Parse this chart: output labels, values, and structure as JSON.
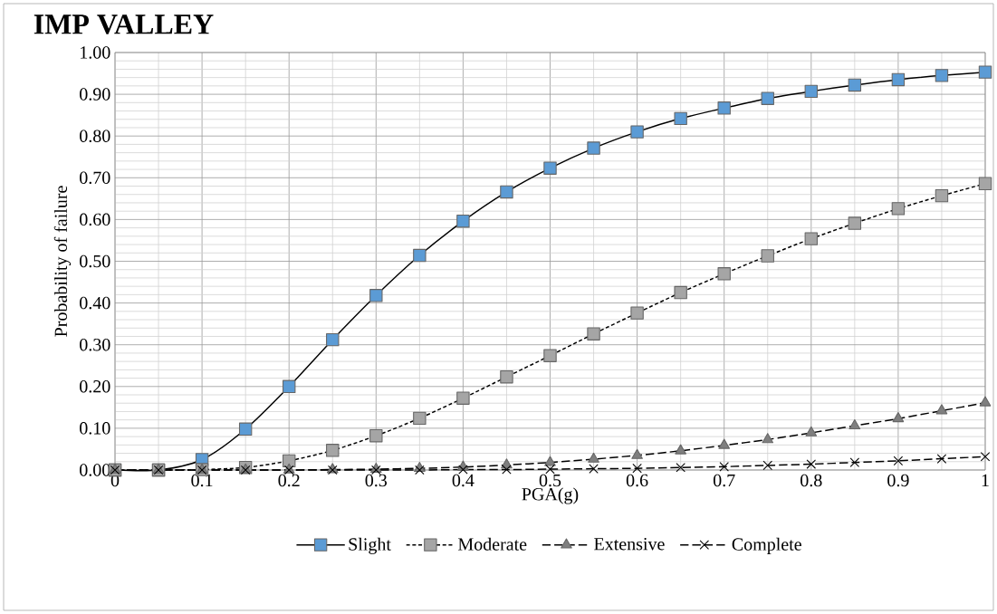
{
  "chart_data": {
    "type": "line",
    "title": "IMP VALLEY",
    "xlabel": "PGA(g)",
    "ylabel": "Probability of failure",
    "x": [
      0,
      0.05,
      0.1,
      0.15,
      0.2,
      0.25,
      0.3,
      0.35,
      0.4,
      0.45,
      0.5,
      0.55,
      0.6,
      0.65,
      0.7,
      0.75,
      0.8,
      0.85,
      0.9,
      0.95,
      1
    ],
    "series": [
      {
        "name": "Slight",
        "color": "#5b9bd5",
        "marker": "square",
        "line_style": "solid",
        "values": [
          0,
          0,
          0.025,
          0.098,
          0.2,
          0.312,
          0.418,
          0.514,
          0.596,
          0.666,
          0.723,
          0.771,
          0.81,
          0.842,
          0.867,
          0.89,
          0.907,
          0.922,
          0.935,
          0.945,
          0.953
        ]
      },
      {
        "name": "Moderate",
        "color": "#a5a5a5",
        "marker": "square",
        "line_style": "dotted",
        "values": [
          0,
          0,
          0.001,
          0.006,
          0.022,
          0.047,
          0.082,
          0.124,
          0.172,
          0.223,
          0.274,
          0.326,
          0.376,
          0.425,
          0.47,
          0.513,
          0.554,
          0.591,
          0.626,
          0.657,
          0.686
        ]
      },
      {
        "name": "Extensive",
        "color": "#7f7f7f",
        "marker": "triangle",
        "line_style": "dashed",
        "values": [
          0,
          0,
          0,
          0,
          0,
          0.001,
          0.002,
          0.004,
          0.007,
          0.012,
          0.018,
          0.026,
          0.035,
          0.046,
          0.059,
          0.073,
          0.089,
          0.106,
          0.123,
          0.142,
          0.161
        ]
      },
      {
        "name": "Complete",
        "color": "#000000",
        "marker": "cross",
        "line_style": "dashed",
        "values": [
          0,
          0,
          0,
          0,
          0,
          0,
          0,
          0,
          0.001,
          0.001,
          0.002,
          0.003,
          0.004,
          0.006,
          0.008,
          0.011,
          0.014,
          0.018,
          0.022,
          0.027,
          0.032
        ]
      }
    ],
    "xlim": [
      0,
      1
    ],
    "ylim": [
      0,
      1
    ],
    "xticks": [
      0,
      0.1,
      0.2,
      0.3,
      0.4,
      0.5,
      0.6,
      0.7,
      0.8,
      0.9,
      1
    ],
    "yticks": [
      {
        "value": 0,
        "label": "0.00"
      },
      {
        "value": 0.1,
        "label": "0.10"
      },
      {
        "value": 0.2,
        "label": "0.20"
      },
      {
        "value": 0.3,
        "label": "0.30"
      },
      {
        "value": 0.4,
        "label": "0.40"
      },
      {
        "value": 0.5,
        "label": "0.50"
      },
      {
        "value": 0.6,
        "label": "0.60"
      },
      {
        "value": 0.7,
        "label": "0.70"
      },
      {
        "value": 0.8,
        "label": "0.80"
      },
      {
        "value": 0.9,
        "label": "0.90"
      },
      {
        "value": 1,
        "label": "1.00"
      }
    ],
    "grid": true,
    "legend": "bottom"
  }
}
